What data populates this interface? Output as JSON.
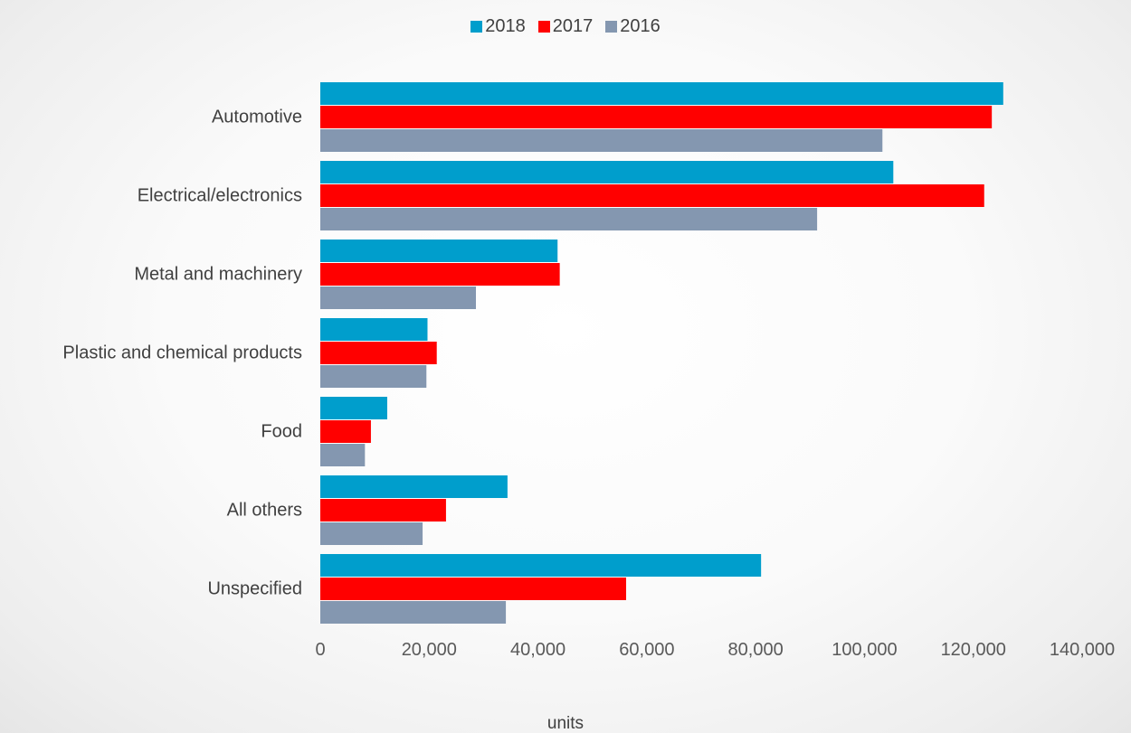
{
  "chart_data": {
    "type": "bar",
    "orientation": "horizontal",
    "categories": [
      "Automotive",
      "Electrical/electronics",
      "Metal and machinery",
      "Plastic and chemical products",
      "Food",
      "All others",
      "Unspecified"
    ],
    "series": [
      {
        "name": "2018",
        "color": "#009ecc",
        "values": [
          125500,
          105300,
          43600,
          19700,
          12300,
          34400,
          81000
        ]
      },
      {
        "name": "2017",
        "color": "#ff0000",
        "values": [
          123400,
          122000,
          44000,
          21400,
          9300,
          23100,
          56200
        ]
      },
      {
        "name": "2016",
        "color": "#8497b0",
        "values": [
          103300,
          91300,
          28600,
          19500,
          8200,
          18800,
          34100
        ]
      }
    ],
    "title": "",
    "xlabel": "units",
    "ylabel": "",
    "xlim": [
      0,
      140000
    ],
    "xticks": [
      "0",
      "20,000",
      "40,000",
      "60,000",
      "80,000",
      "100,000",
      "120,000",
      "140,000"
    ],
    "grid": false,
    "legend_position": "top-center"
  }
}
